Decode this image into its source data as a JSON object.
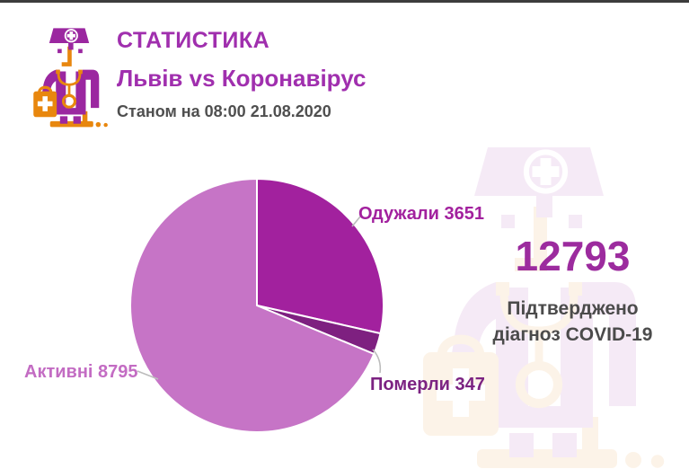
{
  "colors": {
    "brand_purple": "#9b27a0",
    "brand_orange": "#e8870e",
    "title_purple": "#a02fae",
    "text_gray": "#4f4f4f",
    "big_number_purple": "#9c2b9e",
    "top_border": "#3c3c3c",
    "slice_recovered": "#a2219e",
    "slice_died": "#7e2080",
    "slice_active": "#c674c6"
  },
  "icons": {
    "logo": "doctor-with-medical-bag-icon",
    "watermark": "doctor-with-medical-bag-icon"
  },
  "header": {
    "title": "СТАТИСТИКА",
    "subtitle": "Львів vs Коронавірус",
    "as_of": "Станом на 08:00 21.08.2020"
  },
  "summary": {
    "caption_line1": "Підтверджено",
    "caption_line2": "діагноз COVID-19"
  },
  "chart_data": {
    "type": "pie",
    "title": "",
    "slices": [
      {
        "name": "Одужали",
        "value": 3651,
        "color": "#a2219e"
      },
      {
        "name": "Померли",
        "value": 347,
        "color": "#7e2080"
      },
      {
        "name": "Активні",
        "value": 8795,
        "color": "#c674c6"
      }
    ],
    "total": 12793,
    "start_angle_deg": 0,
    "direction": "clockwise",
    "legend_position": "callout-labels",
    "slice_stroke": "#ffffff"
  }
}
